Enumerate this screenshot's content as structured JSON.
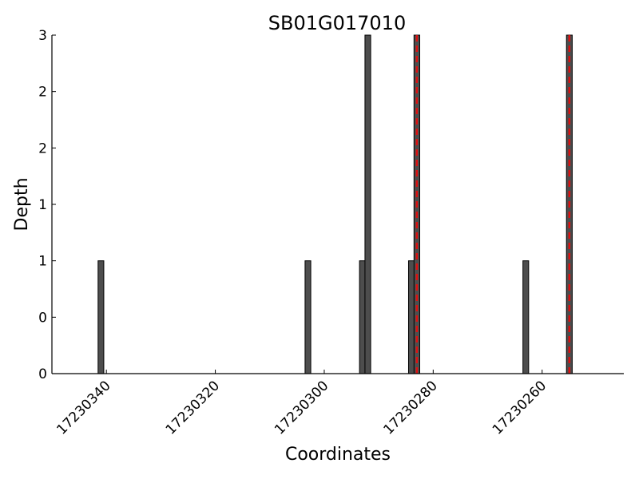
{
  "chart_data": {
    "type": "bar",
    "title": "SB01G017010",
    "xlabel": "Coordinates",
    "ylabel": "Depth",
    "x_reversed": true,
    "xlim": [
      17230350,
      17230245
    ],
    "ylim": [
      0,
      3
    ],
    "y_tick_values": [
      0,
      0.5,
      1,
      1.5,
      2,
      2.5,
      3
    ],
    "y_tick_labels": [
      "0",
      "0",
      "1",
      "1",
      "2",
      "2",
      "3"
    ],
    "x_tick_values": [
      17230340,
      17230320,
      17230300,
      17230280,
      17230260
    ],
    "x_tick_labels": [
      "17230340",
      "17230320",
      "17230300",
      "17230280",
      "17230260"
    ],
    "bar_color": "#4d4d4d",
    "marker_color": "#dd1111",
    "bars": [
      {
        "x": 17230341,
        "y": 1
      },
      {
        "x": 17230303,
        "y": 1
      },
      {
        "x": 17230293,
        "y": 1
      },
      {
        "x": 17230292,
        "y": 3
      },
      {
        "x": 17230284,
        "y": 1
      },
      {
        "x": 17230283,
        "y": 3
      },
      {
        "x": 17230263,
        "y": 1
      },
      {
        "x": 17230255,
        "y": 3
      }
    ],
    "marker_lines": [
      17230283,
      17230255
    ]
  }
}
